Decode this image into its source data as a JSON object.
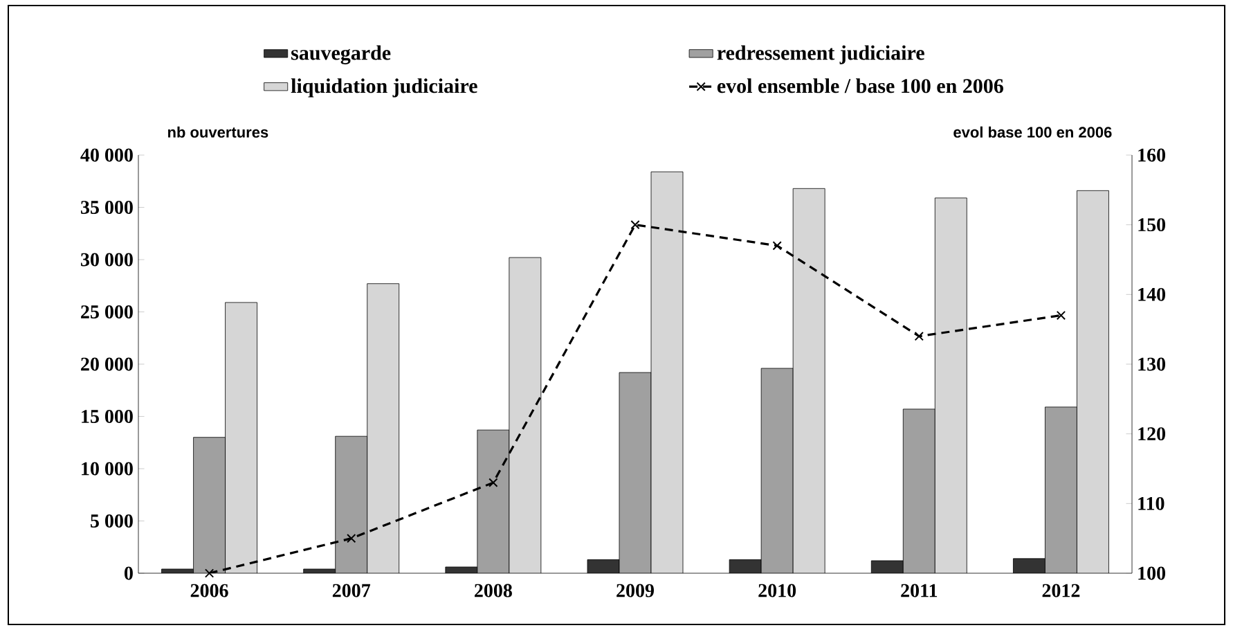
{
  "chart_data": {
    "type": "bar",
    "ylabel": "nb ouvertures",
    "y2label": "evol base 100 en 2006",
    "categories": [
      "2006",
      "2007",
      "2008",
      "2009",
      "2010",
      "2011",
      "2012"
    ],
    "series": [
      {
        "name": "sauvegarde",
        "color": "#333333",
        "values": [
          400,
          400,
          600,
          1300,
          1300,
          1200,
          1400
        ]
      },
      {
        "name": "redressement judiciaire",
        "color": "#a0a0a0",
        "values": [
          13000,
          13100,
          13700,
          19200,
          19600,
          15700,
          15900
        ]
      },
      {
        "name": "liquidation judiciaire",
        "color": "#d6d6d6",
        "values": [
          25900,
          27700,
          30200,
          38400,
          36800,
          35900,
          36600
        ]
      },
      {
        "name": "evol ensemble / base 100 en 2006",
        "type": "line",
        "axis": "y2",
        "color": "#000000",
        "marker": "cross",
        "line_style": "dashed",
        "values": [
          100,
          105,
          113,
          150,
          147,
          134,
          137
        ]
      }
    ],
    "ylim": [
      0,
      40000
    ],
    "yticks": [
      0,
      {
        "value": 5000,
        "label": "5 000"
      },
      {
        "value": 10000,
        "label": "10 000"
      },
      {
        "value": 15000,
        "label": "15 000"
      },
      {
        "value": 20000,
        "label": "20 000"
      },
      {
        "value": 25000,
        "label": "25 000"
      },
      {
        "value": 30000,
        "label": "30 000"
      },
      {
        "value": 35000,
        "label": "35 000"
      },
      {
        "value": 40000,
        "label": "40 000"
      }
    ],
    "y2lim": [
      100,
      160
    ],
    "y2ticks": [
      100,
      110,
      120,
      130,
      140,
      150,
      160
    ],
    "legend": "top",
    "grid": false
  }
}
